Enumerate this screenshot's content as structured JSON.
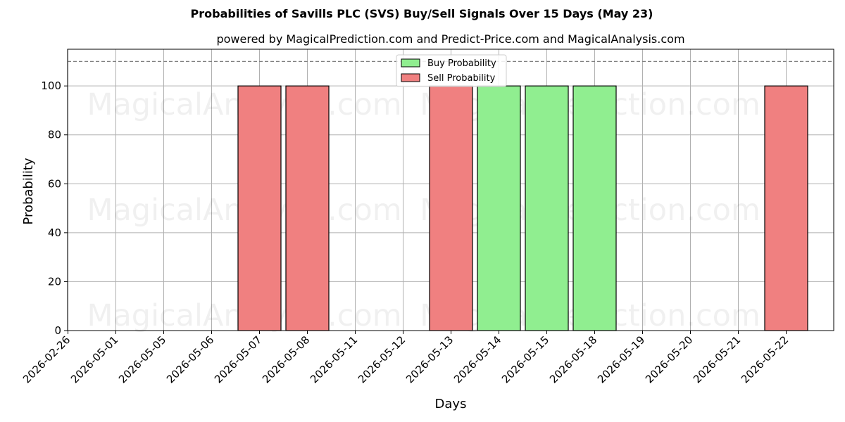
{
  "chart_data": {
    "type": "bar",
    "title": "Probabilities of Savills PLC (SVS) Buy/Sell Signals Over 15 Days (May 23)",
    "subtitle": "powered by MagicalPrediction.com and Predict-Price.com and MagicalAnalysis.com",
    "xlabel": "Days",
    "ylabel": "Probability",
    "ylim": [
      0,
      115
    ],
    "yticks": [
      0,
      20,
      40,
      60,
      80,
      100
    ],
    "reference_line": 110,
    "grid": true,
    "legend_position": "top-center",
    "categories": [
      "2026-02-26",
      "2026-05-01",
      "2026-05-05",
      "2026-05-06",
      "2026-05-07",
      "2026-05-08",
      "2026-05-11",
      "2026-05-12",
      "2026-05-13",
      "2026-05-14",
      "2026-05-15",
      "2026-05-18",
      "2026-05-19",
      "2026-05-20",
      "2026-05-21",
      "2026-05-22"
    ],
    "series": [
      {
        "name": "Buy Probability",
        "color": "#90ee90",
        "values": [
          0,
          0,
          0,
          0,
          0,
          0,
          0,
          0,
          0,
          100,
          100,
          100,
          0,
          0,
          0,
          0
        ]
      },
      {
        "name": "Sell Probability",
        "color": "#f08080",
        "values": [
          0,
          0,
          0,
          0,
          100,
          100,
          0,
          0,
          100,
          0,
          0,
          0,
          0,
          0,
          0,
          100
        ]
      }
    ],
    "watermarks": [
      "MagicalAnalysis.com",
      "MagicalPrediction.com"
    ]
  }
}
